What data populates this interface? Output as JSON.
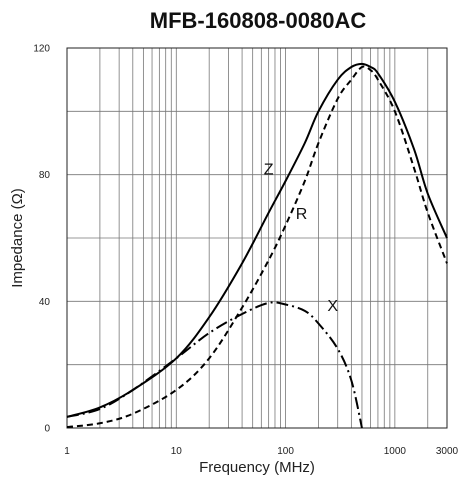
{
  "chart_data": {
    "type": "line",
    "title": "MFB-160808-0080AC",
    "xlabel": "Frequency (MHz)",
    "ylabel": "Impedance (Ω)",
    "x_scale": "log",
    "xlim": [
      1,
      3000
    ],
    "ylim": [
      0,
      120
    ],
    "x_ticks": [
      1,
      10,
      100,
      1000,
      3000
    ],
    "x_tick_labels": [
      "1",
      "10",
      "100",
      "1000",
      "3000"
    ],
    "y_ticks": [
      0,
      40,
      80,
      120
    ],
    "y_tick_labels": [
      "0",
      "40",
      "80",
      "120"
    ],
    "grid": true,
    "series": [
      {
        "name": "Z",
        "style": "solid",
        "x": [
          1,
          2,
          4,
          10,
          20,
          40,
          70,
          100,
          150,
          200,
          300,
          400,
          500,
          600,
          700,
          1000,
          1500,
          2000,
          3000
        ],
        "y": [
          3.5,
          6.5,
          12,
          22,
          35,
          52,
          68,
          78,
          90,
          100,
          110,
          114,
          115,
          114,
          112,
          103,
          88,
          74,
          60
        ]
      },
      {
        "name": "R",
        "style": "dashed",
        "x": [
          1,
          2,
          4,
          10,
          20,
          40,
          70,
          100,
          150,
          200,
          300,
          400,
          500,
          600,
          700,
          1000,
          1500,
          2000,
          3000
        ],
        "y": [
          0.3,
          1.5,
          4.5,
          12,
          22,
          38,
          53,
          64,
          78,
          90,
          104,
          110,
          114,
          113,
          110,
          100,
          82,
          68,
          52
        ]
      },
      {
        "name": "X",
        "style": "dashdot",
        "x": [
          1,
          2,
          4,
          10,
          20,
          40,
          70,
          100,
          150,
          200,
          300,
          400,
          500
        ],
        "y": [
          3.5,
          6,
          12,
          22,
          30,
          36,
          39.5,
          39,
          37,
          33,
          25,
          15,
          0
        ]
      }
    ],
    "annotations": [
      {
        "text": "Z",
        "x": 70,
        "y": 80
      },
      {
        "text": "R",
        "x": 140,
        "y": 66
      },
      {
        "text": "X",
        "x": 270,
        "y": 37
      }
    ]
  }
}
